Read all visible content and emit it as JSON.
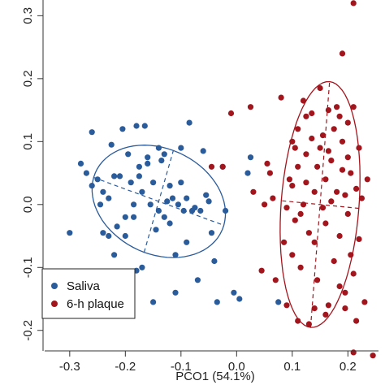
{
  "chart_data": {
    "type": "scatter",
    "title": "",
    "xlabel": "PCO1 (54.1%)",
    "ylabel": "",
    "xlim": [
      -0.345,
      0.255
    ],
    "ylim": [
      -0.23,
      0.325
    ],
    "xticks": [
      "-0.3",
      "-0.2",
      "-0.1",
      "0.0",
      "0.1",
      "0.2"
    ],
    "xtick_values": [
      -0.3,
      -0.2,
      -0.1,
      0.0,
      0.1,
      0.2
    ],
    "yticks": [
      "-0.2",
      "-0.1",
      "0.0",
      "0.1",
      "0.2",
      "0.3"
    ],
    "ytick_values": [
      -0.2,
      -0.1,
      0.0,
      0.1,
      0.2,
      0.3
    ],
    "grid": false,
    "legend": {
      "position": "bottom-left"
    },
    "series": [
      {
        "name": "Saliva",
        "color": "#2a5b9a",
        "ellipse": {
          "center": [
            -0.14,
            0.005
          ],
          "semi_axis_major": 0.123,
          "semi_axis_minor": 0.085,
          "angle_deg": -18
        },
        "points": [
          [
            -0.3,
            -0.045
          ],
          [
            -0.28,
            0.065
          ],
          [
            -0.27,
            0.05
          ],
          [
            -0.26,
            0.03
          ],
          [
            -0.26,
            0.115
          ],
          [
            -0.25,
            0.04
          ],
          [
            -0.245,
            0.0
          ],
          [
            -0.24,
            0.02
          ],
          [
            -0.24,
            -0.045
          ],
          [
            -0.23,
            -0.05
          ],
          [
            -0.23,
            0.01
          ],
          [
            -0.225,
            0.095
          ],
          [
            -0.22,
            0.045
          ],
          [
            -0.22,
            -0.08
          ],
          [
            -0.215,
            -0.035
          ],
          [
            -0.21,
            0.045
          ],
          [
            -0.21,
            -0.12
          ],
          [
            -0.205,
            0.12
          ],
          [
            -0.2,
            -0.05
          ],
          [
            -0.2,
            -0.02
          ],
          [
            -0.195,
            0.08
          ],
          [
            -0.19,
            0.035
          ],
          [
            -0.185,
            -0.02
          ],
          [
            -0.185,
            0.0
          ],
          [
            -0.18,
            0.125
          ],
          [
            -0.18,
            -0.105
          ],
          [
            -0.175,
            0.045
          ],
          [
            -0.175,
            0.06
          ],
          [
            -0.17,
            0.02
          ],
          [
            -0.17,
            -0.1
          ],
          [
            -0.165,
            0.125
          ],
          [
            -0.16,
            0.065
          ],
          [
            -0.16,
            0.075
          ],
          [
            -0.155,
            0.0
          ],
          [
            -0.15,
            0.035
          ],
          [
            -0.15,
            -0.155
          ],
          [
            -0.145,
            -0.04
          ],
          [
            -0.14,
            -0.01
          ],
          [
            -0.14,
            0.09
          ],
          [
            -0.135,
            0.07
          ],
          [
            -0.13,
            0.08
          ],
          [
            -0.13,
            -0.02
          ],
          [
            -0.125,
            0.005
          ],
          [
            -0.12,
            -0.03
          ],
          [
            -0.12,
            0.03
          ],
          [
            -0.115,
            0.01
          ],
          [
            -0.11,
            -0.08
          ],
          [
            -0.11,
            -0.14
          ],
          [
            -0.105,
            0.0
          ],
          [
            -0.1,
            0.035
          ],
          [
            -0.1,
            0.09
          ],
          [
            -0.095,
            -0.01
          ],
          [
            -0.09,
            0.01
          ],
          [
            -0.09,
            -0.06
          ],
          [
            -0.085,
            0.13
          ],
          [
            -0.08,
            -0.01
          ],
          [
            -0.075,
            -0.005
          ],
          [
            -0.07,
            -0.12
          ],
          [
            -0.065,
            -0.01
          ],
          [
            -0.06,
            0.085
          ],
          [
            -0.055,
            0.015
          ],
          [
            -0.05,
            0.005
          ],
          [
            -0.045,
            -0.045
          ],
          [
            -0.04,
            -0.09
          ],
          [
            -0.035,
            -0.155
          ],
          [
            -0.025,
            0.06
          ],
          [
            -0.02,
            -0.01
          ],
          [
            -0.005,
            -0.14
          ],
          [
            0.005,
            -0.15
          ],
          [
            0.02,
            0.05
          ],
          [
            0.025,
            0.075
          ],
          [
            0.075,
            -0.155
          ],
          [
            -0.19,
            -0.14
          ]
        ]
      },
      {
        "name": "6-h plaque",
        "color": "#a3151d",
        "ellipse": {
          "center": [
            0.15,
            0.0
          ],
          "semi_axis_major": 0.196,
          "semi_axis_minor": 0.07,
          "angle_deg": 85
        },
        "points": [
          [
            -0.045,
            0.06
          ],
          [
            -0.025,
            0.06
          ],
          [
            -0.01,
            0.145
          ],
          [
            0.025,
            0.155
          ],
          [
            0.03,
            0.02
          ],
          [
            0.045,
            -0.105
          ],
          [
            0.05,
            0.0
          ],
          [
            0.055,
            0.065
          ],
          [
            0.06,
            0.05
          ],
          [
            0.065,
            0.01
          ],
          [
            0.07,
            -0.12
          ],
          [
            0.08,
            0.17
          ],
          [
            0.085,
            -0.06
          ],
          [
            0.09,
            -0.005
          ],
          [
            0.09,
            -0.16
          ],
          [
            0.095,
            0.04
          ],
          [
            0.1,
            -0.08
          ],
          [
            0.1,
            0.03
          ],
          [
            0.105,
            -0.025
          ],
          [
            0.105,
            0.09
          ],
          [
            0.11,
            0.06
          ],
          [
            0.11,
            0.12
          ],
          [
            0.115,
            -0.015
          ],
          [
            0.115,
            -0.1
          ],
          [
            0.12,
            0.0
          ],
          [
            0.12,
            0.165
          ],
          [
            0.125,
            0.08
          ],
          [
            0.125,
            0.035
          ],
          [
            0.13,
            -0.045
          ],
          [
            0.13,
            -0.19
          ],
          [
            0.135,
            0.105
          ],
          [
            0.135,
            0.145
          ],
          [
            0.14,
            0.02
          ],
          [
            0.14,
            -0.06
          ],
          [
            0.145,
            0.06
          ],
          [
            0.145,
            -0.12
          ],
          [
            0.15,
            0.185
          ],
          [
            0.15,
            0.09
          ],
          [
            0.155,
            -0.005
          ],
          [
            0.155,
            0.11
          ],
          [
            0.16,
            0.04
          ],
          [
            0.16,
            -0.03
          ],
          [
            0.165,
            0.15
          ],
          [
            0.165,
            -0.16
          ],
          [
            0.17,
            0.07
          ],
          [
            0.17,
            0.005
          ],
          [
            0.175,
            0.12
          ],
          [
            0.175,
            -0.09
          ],
          [
            0.18,
            0.155
          ],
          [
            0.18,
            0.02
          ],
          [
            0.185,
            -0.05
          ],
          [
            0.185,
            -0.13
          ],
          [
            0.19,
            0.24
          ],
          [
            0.19,
            0.1
          ],
          [
            0.19,
            0.055
          ],
          [
            0.195,
            0.015
          ],
          [
            0.195,
            -0.14
          ],
          [
            0.2,
            0.13
          ],
          [
            0.2,
            0.075
          ],
          [
            0.2,
            -0.015
          ],
          [
            0.205,
            0.05
          ],
          [
            0.205,
            -0.08
          ],
          [
            0.21,
            0.32
          ],
          [
            0.21,
            0.155
          ],
          [
            0.21,
            -0.11
          ],
          [
            0.215,
            0.025
          ],
          [
            0.215,
            -0.185
          ],
          [
            0.22,
            0.09
          ],
          [
            0.22,
            -0.055
          ],
          [
            0.225,
            0.01
          ],
          [
            0.23,
            -0.155
          ],
          [
            0.235,
            0.04
          ],
          [
            0.245,
            -0.24
          ],
          [
            0.21,
            -0.235
          ],
          [
            0.195,
            -0.165
          ],
          [
            0.16,
            -0.175
          ],
          [
            0.14,
            -0.165
          ],
          [
            0.11,
            -0.185
          ],
          [
            0.1,
            0.1
          ],
          [
            0.125,
            0.14
          ],
          [
            0.165,
            0.085
          ],
          [
            0.185,
            0.14
          ]
        ]
      }
    ]
  }
}
